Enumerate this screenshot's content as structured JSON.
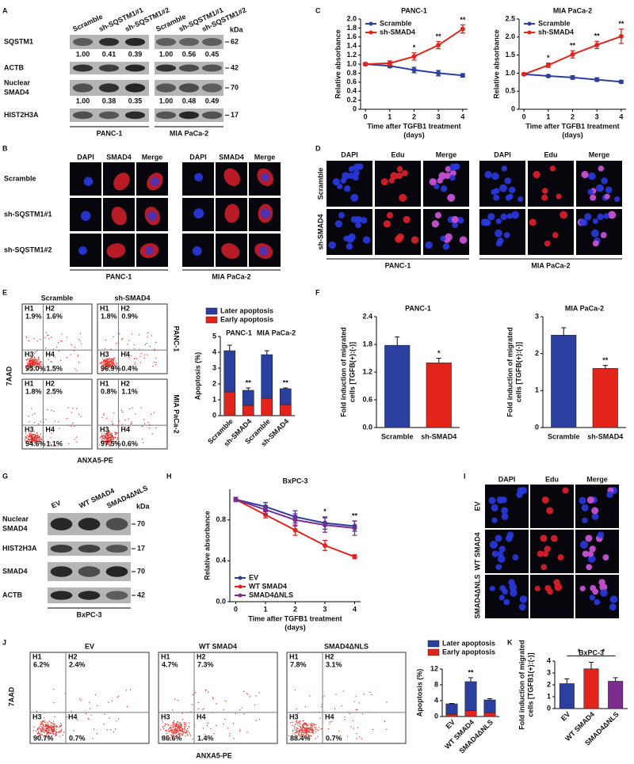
{
  "panel_labels": [
    "A",
    "B",
    "C",
    "D",
    "E",
    "F",
    "G",
    "H",
    "I",
    "J",
    "K"
  ],
  "blot_A": {
    "lanes": [
      "Scramble",
      "sh-SQSTM1#1",
      "sh-SQSTM1#2",
      "Scramble",
      "sh-SQSTM1#1",
      "sh-SQSTM1#2"
    ],
    "kda_label": "kDa",
    "rows": [
      {
        "name": "SQSTM1",
        "kda": 62,
        "quant": [
          "1.00",
          "0.41",
          "0.39",
          "1.00",
          "0.56",
          "0.45"
        ]
      },
      {
        "name": "ACTB",
        "kda": 42
      },
      {
        "name": [
          "Nuclear",
          "SMAD4"
        ],
        "kda": 70,
        "quant": [
          "1.00",
          "0.38",
          "0.35",
          "1.00",
          "0.48",
          "0.49"
        ]
      },
      {
        "name": "HIST2H3A",
        "kda": 17
      }
    ],
    "cell_lines": [
      "PANC-1",
      "MIA PaCa-2"
    ]
  },
  "micro_B": {
    "channels": [
      "DAPI",
      "SMAD4",
      "Merge",
      "DAPI",
      "SMAD4",
      "Merge"
    ],
    "rows": [
      "Scramble",
      "sh-SQSTM1#1",
      "sh-SQSTM1#2"
    ],
    "cell_lines": [
      "PANC-1",
      "MIA PaCa-2"
    ]
  },
  "micro_D": {
    "channels": [
      "DAPI",
      "Edu",
      "Merge",
      "DAPI",
      "Edu",
      "Merge"
    ],
    "rows": [
      "Scramble",
      "sh-SMAD4"
    ],
    "cell_lines": [
      "PANC-1",
      "MIA PaCa-2"
    ]
  },
  "flow_E": {
    "columns": [
      "Scramble",
      "sh-SMAD4"
    ],
    "rows": [
      "PANC-1",
      "MIA PaCa-2"
    ],
    "ylabel": "7AAD",
    "xlabel": "ANXA5-PE",
    "quadrants": [
      "H1",
      "H2",
      "H3",
      "H4"
    ],
    "plots": [
      [
        "1.9%",
        "1.6%",
        "95.0%",
        "1.5%"
      ],
      [
        "1.8%",
        "0.9%",
        "96.9%",
        "0.4%"
      ],
      [
        "1.8%",
        "2.5%",
        "94.6%",
        "1.1%"
      ],
      [
        "0.8%",
        "1.1%",
        "97.5%",
        "0.6%"
      ]
    ]
  },
  "blot_G": {
    "lanes": [
      "EV",
      "WT SMAD4",
      "SMAD4ΔNLS"
    ],
    "kda_label": "kDa",
    "rows": [
      {
        "name": [
          "Nuclear",
          "SMAD4"
        ],
        "kda": 70
      },
      {
        "name": "HIST2H3A",
        "kda": 17
      },
      {
        "name": "SMAD4",
        "kda": 70
      },
      {
        "name": "ACTB",
        "kda": 42
      }
    ],
    "cell_lines": [
      "BxPC-3"
    ]
  },
  "micro_I": {
    "channels": [
      "DAPI",
      "Edu",
      "Merge"
    ],
    "rows": [
      "EV",
      "WT SMAD4",
      "SMAD4ΔNLS"
    ]
  },
  "flow_J": {
    "columns": [
      "EV",
      "WT SMAD4",
      "SMAD4ΔNLS"
    ],
    "ylabel": "7AAD",
    "xlabel": "ANXA5-PE",
    "quadrants": [
      "H1",
      "H2",
      "H3",
      "H4"
    ],
    "plots": [
      [
        "6.2%",
        "2.4%",
        "90.7%",
        "0.7%"
      ],
      [
        "4.7%",
        "7.3%",
        "86.6%",
        "1.4%"
      ],
      [
        "7.8%",
        "3.1%",
        "88.4%",
        "0.7%"
      ]
    ]
  },
  "chart_data": [
    {
      "type": "line",
      "title": "PANC-1",
      "x": [
        0,
        1,
        2,
        3,
        4
      ],
      "xlim": [
        -0.2,
        4.2
      ],
      "xticks": [
        0,
        1,
        2,
        3,
        4
      ],
      "ylim": [
        0,
        2
      ],
      "yticks": [
        0,
        0.2,
        0.4,
        0.6,
        0.8,
        {
          "value": 1,
          "label": "1.0"
        },
        1.2,
        1.4,
        1.6,
        1.8,
        {
          "value": 2,
          "label": "2.0"
        }
      ],
      "ylabel": "Relative absorbance",
      "xlabel": [
        "Time after TGFB1 treatment",
        "(days)"
      ],
      "legend": "upper left",
      "series": [
        {
          "name": "Scramble",
          "color": "#2b3f9e",
          "values": [
            1,
            0.96,
            0.87,
            0.8,
            0.75
          ],
          "errors": [
            0.03,
            0.04,
            0.06,
            0.06,
            0.04
          ]
        },
        {
          "name": "sh-SMAD4",
          "color": "#e3241b",
          "values": [
            1,
            1.02,
            1.17,
            1.42,
            1.78
          ],
          "errors": [
            0.03,
            0.05,
            0.08,
            0.08,
            0.09
          ]
        }
      ],
      "annotations": [
        null,
        null,
        "*",
        "**",
        "**"
      ]
    },
    {
      "type": "line",
      "title": "MIA PaCa-2",
      "x": [
        0,
        1,
        2,
        3,
        4
      ],
      "xlim": [
        -0.2,
        4.2
      ],
      "xticks": [
        0,
        1,
        2,
        3,
        4
      ],
      "ylim": [
        0,
        2.5
      ],
      "yticks": [
        0,
        0.5,
        {
          "value": 1,
          "label": "1.0"
        },
        1.5,
        {
          "value": 2,
          "label": "2.0"
        },
        2.5
      ],
      "ylabel": "Relative absorbance",
      "xlabel": [
        "Time after TGFB1 treatment",
        "(days)"
      ],
      "legend": "upper left",
      "series": [
        {
          "name": "Scramble",
          "color": "#2b3f9e",
          "values": [
            0.97,
            0.92,
            0.88,
            0.82,
            0.76
          ],
          "errors": [
            0.03,
            0.03,
            0.05,
            0.05,
            0.04
          ]
        },
        {
          "name": "sh-SMAD4",
          "color": "#e3241b",
          "values": [
            0.97,
            1.22,
            1.52,
            1.78,
            2.02
          ],
          "errors": [
            0.03,
            0.06,
            0.1,
            0.1,
            0.2
          ]
        }
      ],
      "annotations": [
        null,
        "*",
        "**",
        "**",
        "**"
      ]
    },
    {
      "type": "bar",
      "stacked": true,
      "categories": [
        "Scramble",
        "sh-SMAD4",
        "Scramble",
        "sh-SMAD4"
      ],
      "group_labels": [
        "PANC-1",
        "MIA PaCa-2"
      ],
      "legend": "top",
      "series": [
        {
          "name": "Early apoptosis",
          "color": "#e3241b",
          "values": [
            1.5,
            0.65,
            1.1,
            0.7
          ]
        },
        {
          "name": "Later apoptosis",
          "color": "#2b3f9e",
          "values": [
            2.6,
            0.95,
            2.75,
            1.0
          ],
          "errors": [
            0.35,
            0.15,
            0.25,
            0.05
          ]
        }
      ],
      "ylim": [
        0,
        5
      ],
      "yticks": [
        0,
        1,
        2,
        3,
        4,
        5
      ],
      "ylabel": "Apoptosis (%)",
      "annotations": [
        null,
        "**",
        null,
        "**"
      ]
    },
    {
      "type": "bar",
      "title": "PANC-1",
      "categories": [
        "Scramble",
        "sh-SMAD4"
      ],
      "values": [
        1.78,
        1.4
      ],
      "errors": [
        0.18,
        0.1
      ],
      "colors": [
        "#2b3f9e",
        "#e3241b"
      ],
      "ylim": [
        0,
        2.4
      ],
      "yticks": [
        {
          "value": 0,
          "label": "0.0"
        },
        0.6,
        1.2,
        1.8,
        2.4
      ],
      "ylabel": [
        "Fold induction of migrated",
        "cells [TGFB(+):(-)]"
      ],
      "annotations": [
        null,
        "*"
      ]
    },
    {
      "type": "bar",
      "title": "MIA PaCa-2",
      "categories": [
        "Scramble",
        "sh-SMAD4"
      ],
      "values": [
        2.5,
        1.6
      ],
      "errors": [
        0.2,
        0.08
      ],
      "colors": [
        "#2b3f9e",
        "#e3241b"
      ],
      "ylim": [
        0,
        3
      ],
      "yticks": [
        0,
        1,
        2,
        3
      ],
      "ylabel": [
        "Fold induction of migrated",
        "cells [TGFB(+):(-)]"
      ],
      "annotations": [
        null,
        "**"
      ]
    },
    {
      "type": "line",
      "title": "BxPC-3",
      "x": [
        0,
        1,
        2,
        3,
        4
      ],
      "xlim": [
        -0.2,
        4.2
      ],
      "xticks": [
        0,
        1,
        2,
        3,
        4
      ],
      "ylim": [
        0,
        1.1
      ],
      "yticks": [
        {
          "value": 0,
          "label": "0.0"
        },
        0.4,
        0.8
      ],
      "ylabel": "Relative absorbance",
      "xlabel": [
        "Time after TGFB1 treatment",
        "(days)"
      ],
      "legend": "lower left",
      "series": [
        {
          "name": "EV",
          "color": "#2b3f9e",
          "values": [
            1,
            0.93,
            0.83,
            0.77,
            0.74
          ],
          "errors": [
            0.02,
            0.04,
            0.06,
            0.06,
            0.05
          ]
        },
        {
          "name": "WT SMAD4",
          "color": "#e3241b",
          "values": [
            1,
            0.85,
            0.7,
            0.55,
            0.44
          ],
          "errors": [
            0.02,
            0.03,
            0.05,
            0.05,
            0.02
          ]
        },
        {
          "name": "SMAD4ΔNLS",
          "color": "#7b2d8e",
          "values": [
            1,
            0.9,
            0.8,
            0.75,
            0.72
          ],
          "errors": [
            0.02,
            0.04,
            0.06,
            0.07,
            0.07
          ]
        }
      ],
      "annotations": [
        null,
        null,
        null,
        "*",
        "**"
      ]
    },
    {
      "type": "bar",
      "stacked": true,
      "categories": [
        "EV",
        "WT SMAD4",
        "SMAD4ΔNLS"
      ],
      "legend": "top",
      "series": [
        {
          "name": "Early apoptosis",
          "color": "#e3241b",
          "values": [
            0.6,
            1.5,
            1.0
          ]
        },
        {
          "name": "Later apoptosis",
          "color": "#2b3f9e",
          "values": [
            2.6,
            7.3,
            3.2
          ],
          "errors": [
            0.1,
            1.0,
            0.3
          ]
        }
      ],
      "ylim": [
        0,
        12
      ],
      "yticks": [
        0,
        4,
        8,
        12
      ],
      "ylabel": "Apoptosis (%)",
      "annotations": [
        null,
        "**",
        null
      ]
    },
    {
      "type": "bar",
      "title": "BxPC-3",
      "categories": [
        "EV",
        "WT SMAD4",
        "SMAD4ΔNLS"
      ],
      "values": [
        2.1,
        3.35,
        2.3
      ],
      "errors": [
        0.4,
        0.55,
        0.3
      ],
      "colors": [
        "#2b3f9e",
        "#e3241b",
        "#7b2d8e"
      ],
      "ylim": [
        0,
        4
      ],
      "yticks": [
        0,
        1,
        2,
        3,
        4
      ],
      "ylabel": [
        "Fold induction of migrated",
        "cells [TGFB1(+):(-)]"
      ],
      "significance": [
        {
          "pair": [
            "EV",
            "WT SMAD4"
          ],
          "text": "*"
        },
        {
          "pair": [
            "WT SMAD4",
            "SMAD4ΔNLS"
          ],
          "text": "*"
        }
      ]
    }
  ]
}
